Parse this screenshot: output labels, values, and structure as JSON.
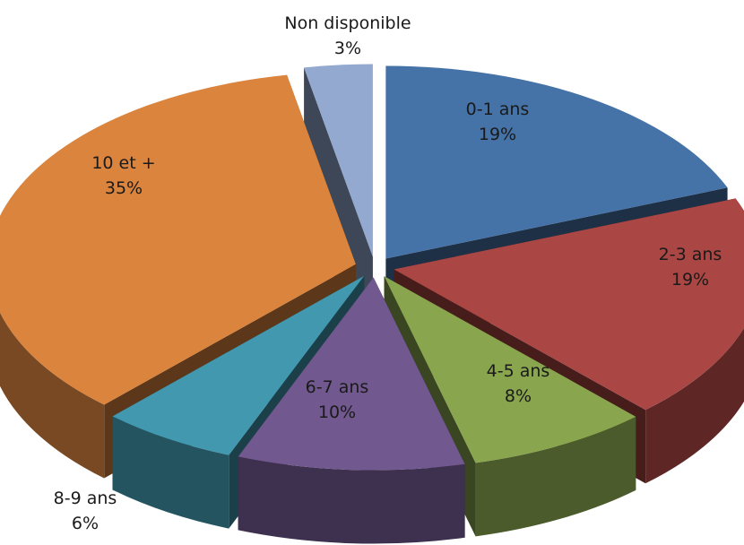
{
  "chart_data": {
    "type": "pie",
    "style": "3d-exploded",
    "title": "",
    "legend": "none",
    "slices": [
      {
        "label": "0-1 ans",
        "percent_label": "19%",
        "value": 19,
        "color": "#4572A7"
      },
      {
        "label": "2-3 ans",
        "percent_label": "19%",
        "value": 19,
        "color": "#AA4643"
      },
      {
        "label": "4-5 ans",
        "percent_label": "8%",
        "value": 8,
        "color": "#89A54E"
      },
      {
        "label": "6-7 ans",
        "percent_label": "10%",
        "value": 10,
        "color": "#71588F"
      },
      {
        "label": "8-9 ans",
        "percent_label": "6%",
        "value": 6,
        "color": "#4198AF"
      },
      {
        "label": "10 et +",
        "percent_label": "35%",
        "value": 35,
        "color": "#DB843D"
      },
      {
        "label": "Non disponible",
        "percent_label": "3%",
        "value": 3,
        "color": "#93A9CF"
      }
    ]
  }
}
